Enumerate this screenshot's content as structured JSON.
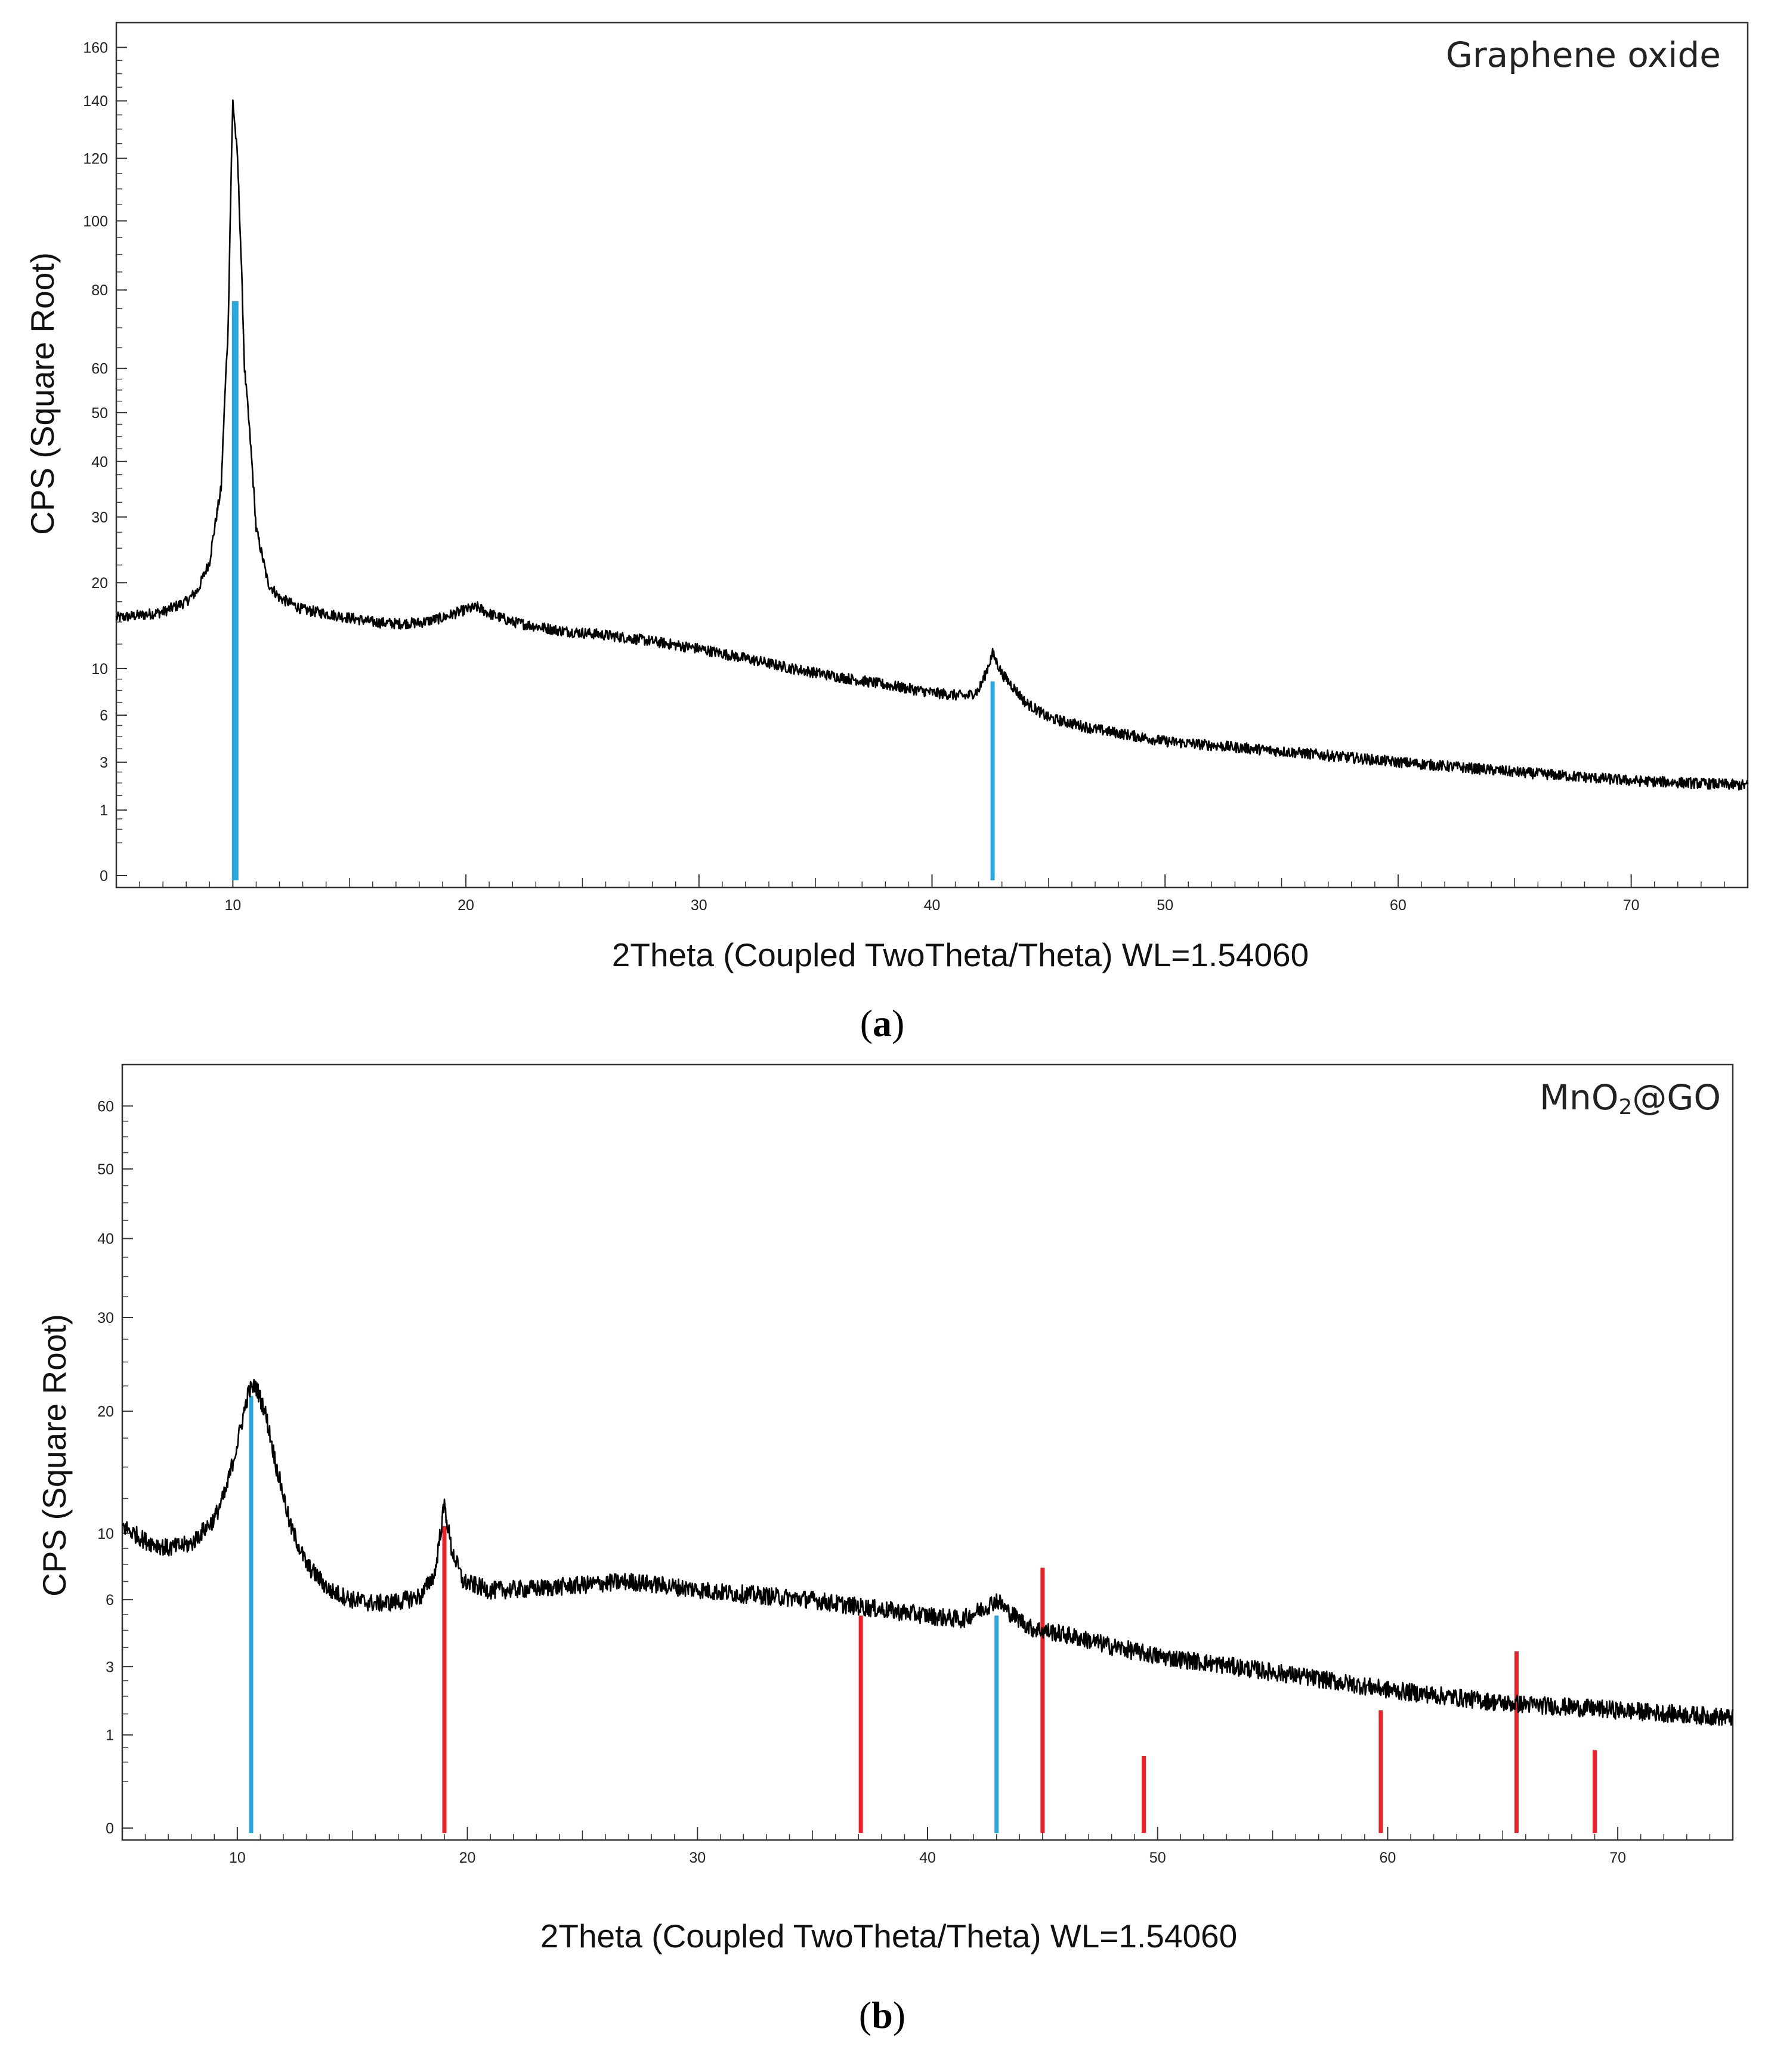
{
  "chart_data": [
    {
      "type": "line",
      "panel_caption": "(a)",
      "caption_open": "(",
      "caption_letter": "a",
      "caption_close": ")",
      "annotation": "Graphene oxide",
      "xlabel": "2Theta (Coupled TwoTheta/Theta) WL=1.54060",
      "ylabel": "CPS (Square Root)",
      "y_scale": "sqrt",
      "xlim": [
        5,
        75
      ],
      "ylim": [
        0,
        165
      ],
      "x_ticks": [
        10,
        20,
        30,
        40,
        50,
        60,
        70
      ],
      "y_ticks": [
        0,
        1,
        3,
        6,
        10,
        20,
        30,
        40,
        50,
        60,
        80,
        100,
        120,
        140,
        160
      ],
      "series": [
        {
          "name": "Graphene oxide",
          "color": "#000000",
          "profile": {
            "points": [
              [
                5,
                15.5
              ],
              [
                6,
                15.8
              ],
              [
                7,
                16.2
              ],
              [
                8,
                17.5
              ],
              [
                8.5,
                19
              ],
              [
                9,
                23
              ],
              [
                9.5,
                35
              ],
              [
                9.8,
                70
              ],
              [
                10,
                140
              ],
              [
                10.2,
                120
              ],
              [
                10.5,
                60
              ],
              [
                11,
                28
              ],
              [
                11.5,
                20
              ],
              [
                12,
                18
              ],
              [
                13,
                16.5
              ],
              [
                14,
                16
              ],
              [
                15,
                15.5
              ],
              [
                16,
                15
              ],
              [
                17,
                14.8
              ],
              [
                18,
                14.9
              ],
              [
                19,
                15.5
              ],
              [
                20,
                16.5
              ],
              [
                20.5,
                16.8
              ],
              [
                21,
                16
              ],
              [
                22,
                15
              ],
              [
                24,
                14
              ],
              [
                26,
                13.5
              ],
              [
                28,
                12.8
              ],
              [
                30,
                12
              ],
              [
                32,
                11
              ],
              [
                34,
                10
              ],
              [
                36,
                9.2
              ],
              [
                38,
                8.5
              ],
              [
                40,
                7.8
              ],
              [
                41.5,
                7.5
              ],
              [
                42,
                8
              ],
              [
                42.3,
                9.5
              ],
              [
                42.6,
                11.5
              ],
              [
                43,
                9.5
              ],
              [
                44,
                7
              ],
              [
                45,
                5.8
              ],
              [
                47,
                5
              ],
              [
                50,
                4.2
              ],
              [
                55,
                3.6
              ],
              [
                60,
                3
              ],
              [
                65,
                2.5
              ],
              [
                70,
                2.1
              ],
              [
                75,
                1.9
              ]
            ],
            "noise": 0.3
          }
        }
      ],
      "reference_lines": [
        {
          "name": "GO reference peak 1",
          "x": 10.1,
          "height": 77,
          "color": "#29a8e0"
        },
        {
          "name": "GO reference peak 2",
          "x": 42.6,
          "height": 8.8,
          "color": "#29a8e0"
        }
      ]
    },
    {
      "type": "line",
      "panel_caption": "(b)",
      "caption_open": "(",
      "caption_letter": "b",
      "caption_close": ")",
      "annotation_main": "MnO",
      "annotation_sub": "2",
      "annotation_rest": "@GO",
      "xlabel": "2Theta (Coupled TwoTheta/Theta) WL=1.54060",
      "ylabel": "CPS (Square Root)",
      "y_scale": "sqrt",
      "xlim": [
        5,
        75
      ],
      "ylim": [
        0,
        65
      ],
      "x_ticks": [
        10,
        20,
        30,
        40,
        50,
        60,
        70
      ],
      "y_ticks": [
        0,
        1,
        3,
        6,
        10,
        20,
        30,
        40,
        50,
        60
      ],
      "series": [
        {
          "name": "MnO2@GO",
          "color": "#000000",
          "profile": {
            "points": [
              [
                5,
                10.5
              ],
              [
                6,
                9.5
              ],
              [
                7,
                9
              ],
              [
                8,
                9.3
              ],
              [
                9,
                11
              ],
              [
                9.5,
                13
              ],
              [
                10,
                17
              ],
              [
                10.5,
                22
              ],
              [
                10.8,
                22.5
              ],
              [
                11.2,
                20
              ],
              [
                11.7,
                15
              ],
              [
                12.3,
                10.5
              ],
              [
                13,
                8
              ],
              [
                14,
                6.5
              ],
              [
                15,
                6
              ],
              [
                16,
                5.8
              ],
              [
                17,
                5.9
              ],
              [
                18,
                6.2
              ],
              [
                18.6,
                7.5
              ],
              [
                19,
                12
              ],
              [
                19.3,
                9
              ],
              [
                19.8,
                7
              ],
              [
                21,
                6.5
              ],
              [
                23,
                6.6
              ],
              [
                25,
                6.8
              ],
              [
                27,
                7
              ],
              [
                29,
                6.7
              ],
              [
                31,
                6.4
              ],
              [
                33,
                6.2
              ],
              [
                35,
                6
              ],
              [
                36,
                5.8
              ],
              [
                38,
                5.5
              ],
              [
                40,
                5.2
              ],
              [
                41.5,
                5
              ],
              [
                42.5,
                5.6
              ],
              [
                43,
                6
              ],
              [
                43.5,
                5.4
              ],
              [
                44.5,
                4.6
              ],
              [
                46,
                4.3
              ],
              [
                48,
                3.8
              ],
              [
                50,
                3.4
              ],
              [
                55,
                2.8
              ],
              [
                60,
                2.2
              ],
              [
                65,
                1.8
              ],
              [
                70,
                1.6
              ],
              [
                75,
                1.4
              ]
            ],
            "noise": 0.35
          }
        }
      ],
      "reference_lines": [
        {
          "name": "GO reference peak 1",
          "x": 10.6,
          "height": 21.5,
          "color": "#29a8e0"
        },
        {
          "name": "MnO2 reference peak",
          "x": 19.0,
          "height": 10.5,
          "color": "#e8232a"
        },
        {
          "name": "MnO2 reference peak",
          "x": 37.1,
          "height": 5.2,
          "color": "#e8232a"
        },
        {
          "name": "GO reference peak 2",
          "x": 43.0,
          "height": 5.2,
          "color": "#29a8e0"
        },
        {
          "name": "MnO2 reference peak",
          "x": 45.0,
          "height": 7.8,
          "color": "#e8232a"
        },
        {
          "name": "MnO2 reference peak",
          "x": 49.4,
          "height": 0.6,
          "color": "#e8232a"
        },
        {
          "name": "MnO2 reference peak",
          "x": 59.7,
          "height": 1.6,
          "color": "#e8232a"
        },
        {
          "name": "MnO2 reference peak",
          "x": 65.6,
          "height": 3.6,
          "color": "#e8232a"
        },
        {
          "name": "MnO2 reference peak",
          "x": 69.0,
          "height": 0.7,
          "color": "#e8232a"
        }
      ]
    }
  ]
}
